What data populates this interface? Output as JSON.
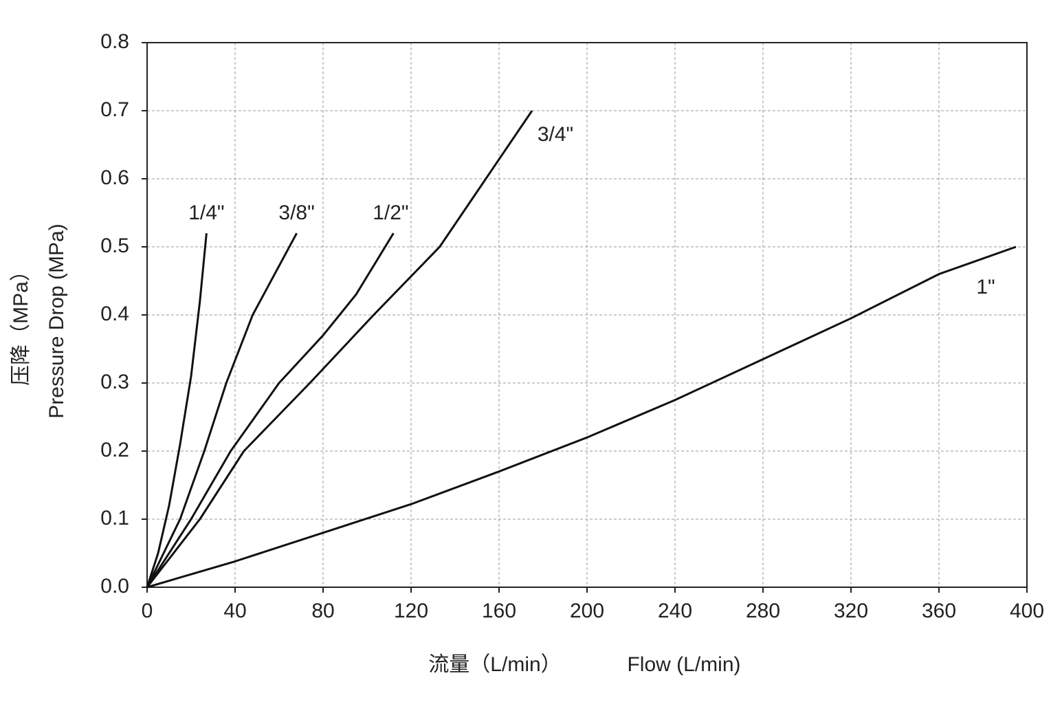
{
  "chart_data": {
    "type": "line",
    "xlabel": [
      "流量（L/min）",
      "Flow (L/min)"
    ],
    "ylabel": [
      "压降（MPa）",
      "Pressure Drop (MPa)"
    ],
    "xlim": [
      0,
      400
    ],
    "xticks": [
      0,
      40,
      80,
      120,
      160,
      200,
      240,
      280,
      320,
      360,
      400
    ],
    "ylim": [
      0,
      0.8
    ],
    "yticks": [
      {
        "value": 0,
        "label": "0.0"
      },
      0.1,
      0.2,
      0.3,
      0.4,
      0.5,
      0.6,
      0.7,
      0.8
    ],
    "grid": true,
    "series": [
      {
        "name": "1/4\"",
        "color": "#111111",
        "x": [
          0,
          5,
          10,
          15,
          20,
          24,
          27
        ],
        "values": [
          0,
          0.05,
          0.12,
          0.21,
          0.31,
          0.42,
          0.52
        ]
      },
      {
        "name": "3/8\"",
        "color": "#111111",
        "x": [
          0,
          15,
          26,
          36,
          48,
          58,
          68
        ],
        "values": [
          0,
          0.1,
          0.2,
          0.3,
          0.4,
          0.46,
          0.52
        ]
      },
      {
        "name": "1/2\"",
        "color": "#111111",
        "x": [
          0,
          20,
          38,
          60,
          80,
          95,
          112
        ],
        "values": [
          0,
          0.1,
          0.2,
          0.3,
          0.37,
          0.43,
          0.52
        ]
      },
      {
        "name": "3/4\"",
        "color": "#111111",
        "x": [
          0,
          24,
          44,
          74,
          103,
          133,
          154,
          175
        ],
        "values": [
          0,
          0.1,
          0.2,
          0.3,
          0.4,
          0.5,
          0.6,
          0.7
        ]
      },
      {
        "name": "1\"",
        "color": "#111111",
        "x": [
          0,
          40,
          80,
          120,
          160,
          200,
          240,
          280,
          320,
          360,
          395
        ],
        "values": [
          0,
          0.038,
          0.08,
          0.122,
          0.17,
          0.22,
          0.275,
          0.335,
          0.395,
          0.46,
          0.5
        ]
      }
    ]
  }
}
